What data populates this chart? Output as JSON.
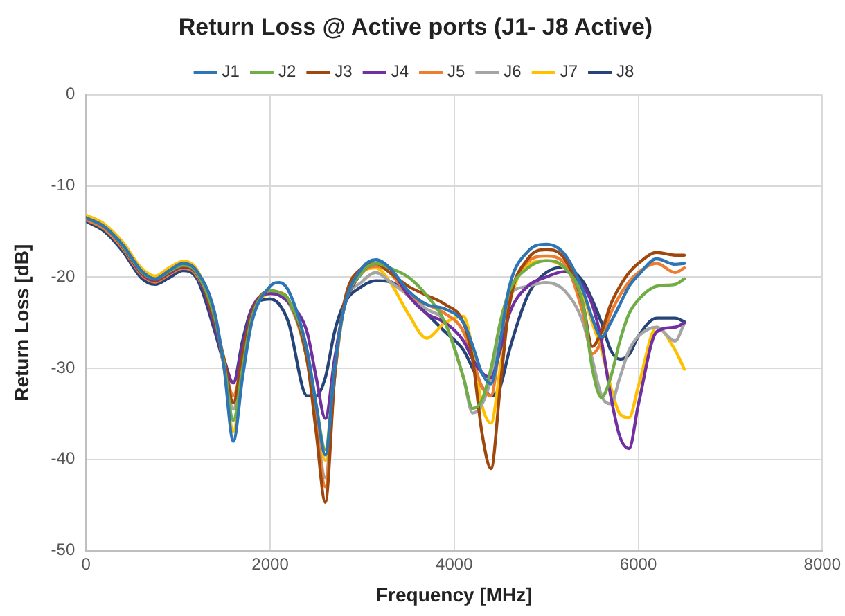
{
  "chart_data": {
    "type": "line",
    "title": "Return Loss @ Active ports (J1- J8 Active)",
    "xlabel": "Frequency [MHz]",
    "ylabel": "Return Loss [dB]",
    "x": [
      0,
      200,
      400,
      600,
      750,
      900,
      1050,
      1200,
      1400,
      1500,
      1600,
      1700,
      1800,
      2000,
      2100,
      2200,
      2400,
      2500,
      2600,
      2700,
      2800,
      3000,
      3150,
      3300,
      3500,
      3700,
      3900,
      4100,
      4200,
      4300,
      4400,
      4500,
      4600,
      4800,
      5000,
      5200,
      5400,
      5500,
      5600,
      5700,
      5800,
      5900,
      6000,
      6200,
      6400,
      6500
    ],
    "xlim": [
      0,
      8000
    ],
    "xticks": [
      0,
      2000,
      4000,
      6000,
      8000
    ],
    "ylim": [
      -50,
      0
    ],
    "yticks": [
      -50,
      -40,
      -30,
      -20,
      -10,
      0
    ],
    "grid": true,
    "legend": "top",
    "marker": "none",
    "line_style": "solid",
    "series": [
      {
        "name": "J1",
        "color": "#2e75b6",
        "values": [
          -13.5,
          -14.5,
          -16.5,
          -19.3,
          -20.2,
          -19.3,
          -18.5,
          -19.3,
          -24,
          -30,
          -38,
          -31,
          -25,
          -21,
          -20.6,
          -21.5,
          -28,
          -34,
          -39.5,
          -30,
          -23.5,
          -19,
          -18.1,
          -19,
          -21.5,
          -23,
          -23.5,
          -25,
          -27.5,
          -30.5,
          -31.7,
          -27,
          -21,
          -17.2,
          -16.4,
          -17.5,
          -21.5,
          -24.5,
          -26.6,
          -25,
          -23,
          -21,
          -19.8,
          -18,
          -18.6,
          -18.5
        ]
      },
      {
        "name": "J2",
        "color": "#70ad47",
        "values": [
          -13.5,
          -14.5,
          -16.6,
          -19.4,
          -20.2,
          -19.4,
          -18.7,
          -19.5,
          -24.5,
          -29.5,
          -35.7,
          -30,
          -24.5,
          -21.5,
          -21.7,
          -22.5,
          -28,
          -34,
          -38.9,
          -30,
          -23.5,
          -19.5,
          -18.5,
          -19,
          -20,
          -22,
          -25,
          -31,
          -34.4,
          -33.5,
          -30,
          -25,
          -21.5,
          -19,
          -18.2,
          -19,
          -23,
          -30,
          -33.2,
          -31,
          -27,
          -24,
          -22.5,
          -21,
          -20.8,
          -20.2
        ]
      },
      {
        "name": "J3",
        "color": "#9e480e",
        "values": [
          -13.5,
          -14.5,
          -16.6,
          -19.5,
          -20.3,
          -19.5,
          -18.8,
          -19.5,
          -25,
          -29,
          -33.8,
          -28.5,
          -24,
          -21.5,
          -21.7,
          -22.5,
          -29,
          -37,
          -44.7,
          -31,
          -23,
          -19,
          -18.5,
          -19.5,
          -21,
          -22,
          -23,
          -25,
          -29,
          -37,
          -41,
          -32,
          -23,
          -18,
          -17,
          -18,
          -23,
          -27.6,
          -26,
          -23,
          -21,
          -19.5,
          -18.5,
          -17.3,
          -17.6,
          -17.6
        ]
      },
      {
        "name": "J4",
        "color": "#7030a0",
        "values": [
          -13.5,
          -14.5,
          -16.7,
          -19.6,
          -20.4,
          -19.6,
          -18.9,
          -19.6,
          -25.5,
          -29,
          -31.6,
          -27.5,
          -23.5,
          -21.8,
          -22,
          -22.8,
          -26,
          -31,
          -35.5,
          -29,
          -23.5,
          -19.5,
          -18.5,
          -19,
          -22,
          -24,
          -25,
          -27,
          -29,
          -30.5,
          -31,
          -28,
          -24,
          -21,
          -20,
          -19.4,
          -21,
          -23,
          -27,
          -33,
          -37.5,
          -38.8,
          -34,
          -26,
          -25.5,
          -25
        ]
      },
      {
        "name": "J5",
        "color": "#ed7d31",
        "values": [
          -13.7,
          -14.75,
          -16.9,
          -19.75,
          -20.55,
          -19.75,
          -19.05,
          -19.8,
          -25,
          -29.5,
          -33,
          -29,
          -24,
          -21.5,
          -21.8,
          -22.5,
          -29,
          -36,
          -43,
          -31,
          -23.5,
          -19.5,
          -18.8,
          -19.5,
          -22,
          -23,
          -24,
          -26,
          -29,
          -32,
          -33,
          -27,
          -22,
          -18.3,
          -17.7,
          -18.5,
          -24,
          -28.4,
          -27,
          -24,
          -22,
          -20.5,
          -19.5,
          -18.5,
          -19.5,
          -19
        ]
      },
      {
        "name": "J6",
        "color": "#a5a5a5",
        "values": [
          -13.5,
          -14.5,
          -16.6,
          -19.5,
          -20.3,
          -19.5,
          -18.9,
          -19.6,
          -25,
          -29.5,
          -34.5,
          -29,
          -24,
          -21.8,
          -22,
          -22.8,
          -29,
          -36,
          -42,
          -31,
          -23.5,
          -20.5,
          -19.5,
          -20.5,
          -22,
          -23.5,
          -25,
          -31,
          -34.9,
          -34,
          -31,
          -25,
          -22,
          -21,
          -20.6,
          -21.5,
          -25,
          -29,
          -33,
          -33.9,
          -31,
          -28,
          -26.5,
          -25.5,
          -27,
          -25.1
        ]
      },
      {
        "name": "J7",
        "color": "#ffc000",
        "values": [
          -13.2,
          -14.2,
          -16.2,
          -19,
          -19.9,
          -19,
          -18.3,
          -19.1,
          -24.7,
          -30,
          -36.9,
          -30.5,
          -24.5,
          -21.8,
          -21.7,
          -22.5,
          -29,
          -35,
          -40.1,
          -30,
          -23.5,
          -19.5,
          -19,
          -20.5,
          -24,
          -26.7,
          -25,
          -24.3,
          -28,
          -34,
          -36,
          -30,
          -23,
          -18.7,
          -18.2,
          -19,
          -22,
          -25,
          -28,
          -32,
          -35,
          -35.4,
          -32,
          -25.5,
          -28,
          -30.1
        ]
      },
      {
        "name": "J8",
        "color": "#264478",
        "values": [
          -13.9,
          -15,
          -17.2,
          -20.1,
          -20.8,
          -20.1,
          -19.3,
          -20.1,
          -26,
          -29.5,
          -31.6,
          -27,
          -23.5,
          -22.4,
          -23,
          -25,
          -33,
          -33,
          -31,
          -26,
          -23,
          -21,
          -20.4,
          -20.5,
          -22,
          -24,
          -26,
          -28,
          -30,
          -32,
          -33,
          -32,
          -28,
          -22,
          -19.5,
          -18.9,
          -20.5,
          -22.5,
          -25,
          -28,
          -29,
          -28.5,
          -26.5,
          -24.5,
          -24.5,
          -24.9
        ]
      }
    ]
  }
}
